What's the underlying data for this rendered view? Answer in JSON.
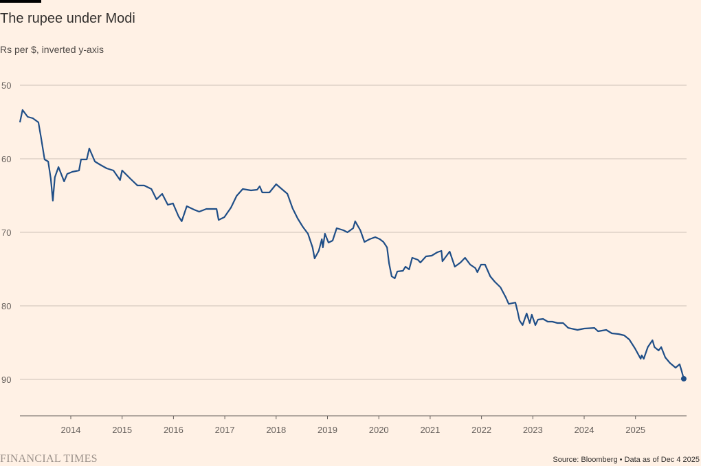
{
  "chart_data": {
    "type": "line",
    "title": "The rupee under Modi",
    "subtitle": "Rs per $, inverted y-axis",
    "xlabel": "",
    "ylabel": "Rs per $",
    "y_inverted": true,
    "ylim": [
      50,
      95
    ],
    "xlim": [
      2013.0,
      2026.0
    ],
    "grid": true,
    "y_ticks": [
      50,
      60,
      70,
      80,
      90
    ],
    "x_ticks": [
      "2014",
      "2015",
      "2016",
      "2017",
      "2018",
      "2019",
      "2020",
      "2021",
      "2022",
      "2023",
      "2024",
      "2025"
    ],
    "series": [
      {
        "name": "Rs per $",
        "color": "#1f4e87",
        "x": [
          2013.01,
          2013.06,
          2013.16,
          2013.26,
          2013.37,
          2013.42,
          2013.49,
          2013.56,
          2013.61,
          2013.65,
          2013.69,
          2013.76,
          2013.87,
          2013.93,
          2014.03,
          2014.16,
          2014.2,
          2014.31,
          2014.36,
          2014.47,
          2014.58,
          2014.7,
          2014.83,
          2014.96,
          2015.0,
          2015.16,
          2015.3,
          2015.43,
          2015.57,
          2015.67,
          2015.78,
          2015.89,
          2015.99,
          2016.1,
          2016.16,
          2016.26,
          2016.4,
          2016.5,
          2016.64,
          2016.84,
          2016.88,
          2016.99,
          2017.12,
          2017.23,
          2017.35,
          2017.51,
          2017.63,
          2017.68,
          2017.73,
          2017.87,
          2018.0,
          2018.11,
          2018.22,
          2018.32,
          2018.42,
          2018.52,
          2018.62,
          2018.71,
          2018.75,
          2018.83,
          2018.89,
          2018.91,
          2018.95,
          2019.02,
          2019.1,
          2019.18,
          2019.31,
          2019.39,
          2019.5,
          2019.54,
          2019.64,
          2019.72,
          2019.82,
          2019.93,
          2020.02,
          2020.09,
          2020.16,
          2020.2,
          2020.25,
          2020.31,
          2020.36,
          2020.47,
          2020.52,
          2020.59,
          2020.65,
          2020.76,
          2020.81,
          2020.92,
          2021.03,
          2021.14,
          2021.22,
          2021.24,
          2021.38,
          2021.48,
          2021.59,
          2021.68,
          2021.78,
          2021.88,
          2021.92,
          2021.99,
          2022.07,
          2022.17,
          2022.26,
          2022.37,
          2022.47,
          2022.53,
          2022.66,
          2022.7,
          2022.74,
          2022.8,
          2022.88,
          2022.94,
          2022.98,
          2023.05,
          2023.1,
          2023.2,
          2023.29,
          2023.38,
          2023.48,
          2023.59,
          2023.69,
          2023.87,
          2024.0,
          2024.2,
          2024.27,
          2024.43,
          2024.54,
          2024.67,
          2024.78,
          2024.88,
          2024.99,
          2025.1,
          2025.12,
          2025.16,
          2025.24,
          2025.33,
          2025.37,
          2025.45,
          2025.5,
          2025.58,
          2025.67,
          2025.78,
          2025.86,
          2025.9,
          2025.94
        ],
        "y": [
          55.05,
          53.36,
          54.3,
          54.49,
          55.05,
          57.1,
          60.09,
          60.37,
          62.71,
          65.7,
          62.52,
          61.12,
          63.08,
          62.06,
          61.78,
          61.59,
          60.09,
          60.09,
          58.6,
          60.37,
          60.84,
          61.31,
          61.59,
          62.9,
          61.59,
          62.71,
          63.64,
          63.64,
          64.11,
          65.51,
          64.77,
          66.26,
          66.07,
          67.85,
          68.5,
          66.45,
          66.92,
          67.2,
          66.82,
          66.82,
          68.32,
          67.94,
          66.64,
          65.05,
          64.11,
          64.3,
          64.21,
          63.74,
          64.58,
          64.58,
          63.46,
          64.11,
          64.77,
          66.73,
          68.13,
          69.25,
          70.19,
          72.06,
          73.55,
          72.52,
          70.93,
          72.06,
          70.19,
          71.4,
          71.12,
          69.44,
          69.72,
          70.0,
          69.44,
          68.5,
          69.72,
          71.31,
          70.93,
          70.65,
          70.93,
          71.31,
          72.06,
          74.21,
          75.98,
          76.26,
          75.33,
          75.23,
          74.67,
          75.05,
          73.46,
          73.74,
          74.11,
          73.27,
          73.18,
          72.71,
          72.52,
          73.93,
          72.62,
          74.67,
          74.11,
          73.46,
          74.39,
          74.86,
          75.42,
          74.39,
          74.39,
          75.98,
          76.73,
          77.48,
          78.79,
          79.74,
          79.55,
          80.67,
          81.98,
          82.62,
          81.03,
          82.34,
          81.21,
          82.62,
          81.87,
          81.78,
          82.15,
          82.15,
          82.34,
          82.34,
          83.0,
          83.27,
          83.08,
          83.0,
          83.46,
          83.27,
          83.74,
          83.83,
          84.02,
          84.58,
          85.79,
          87.2,
          86.73,
          87.2,
          85.61,
          84.67,
          85.61,
          86.07,
          85.61,
          87.01,
          87.76,
          88.41,
          87.94,
          88.88,
          89.91
        ]
      }
    ]
  },
  "footer": {
    "logo": "FINANCIAL TIMES",
    "source": "Source: Bloomberg • Data as of Dec 4 2025"
  }
}
